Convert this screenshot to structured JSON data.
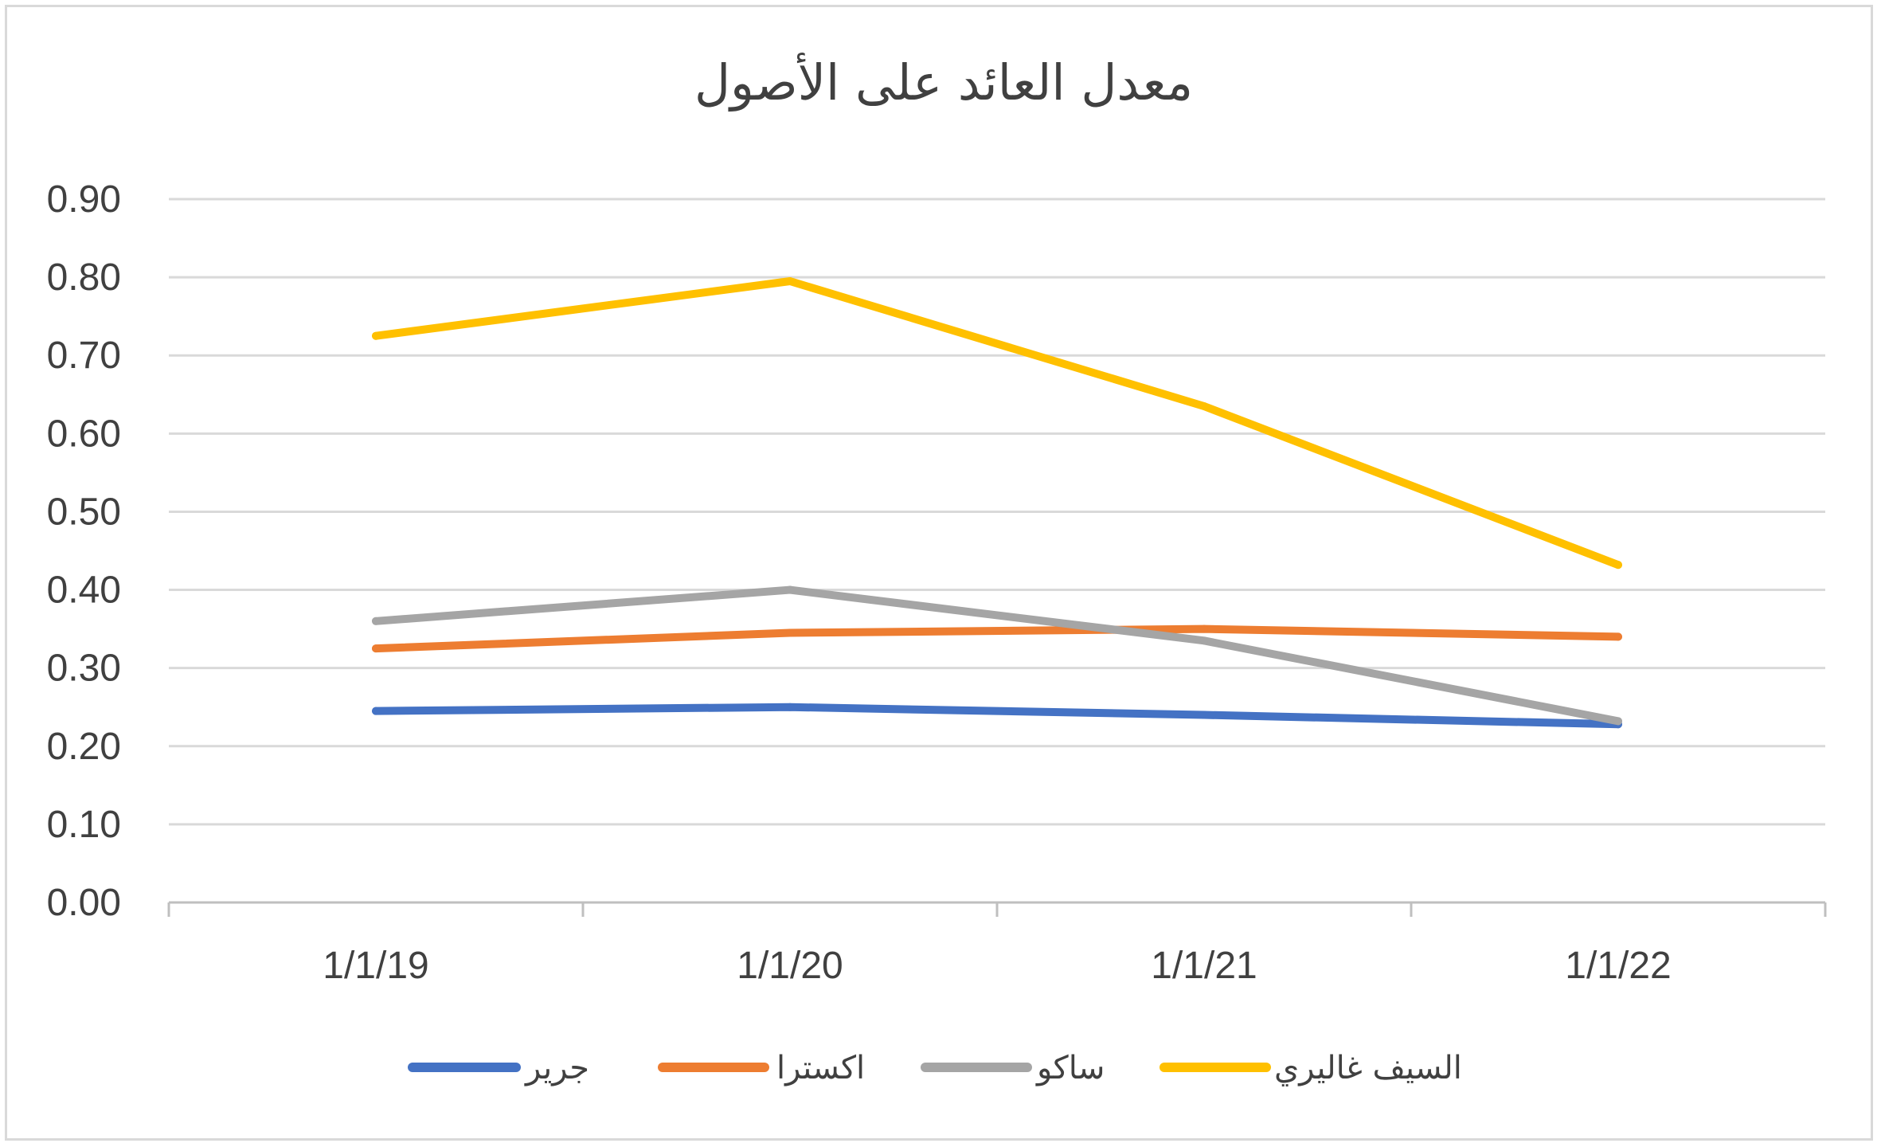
{
  "chart_data": {
    "type": "line",
    "title": "معدل العائد على الأصول",
    "xlabel": "",
    "ylabel": "",
    "categories": [
      "1/1/19",
      "1/1/20",
      "1/1/21",
      "1/1/22"
    ],
    "y_ticks": [
      "0.00",
      "0.10",
      "0.20",
      "0.30",
      "0.40",
      "0.50",
      "0.60",
      "0.70",
      "0.80",
      "0.90"
    ],
    "ylim": [
      0,
      0.9
    ],
    "grid": "horizontal",
    "legend_position": "bottom",
    "series": [
      {
        "name": "جرير",
        "color": "#4472c4",
        "values": [
          0.245,
          0.25,
          0.24,
          0.228
        ]
      },
      {
        "name": "اكسترا",
        "color": "#ed7d31",
        "values": [
          0.325,
          0.345,
          0.35,
          0.34
        ]
      },
      {
        "name": "ساكو",
        "color": "#a5a5a5",
        "values": [
          0.36,
          0.4,
          0.335,
          0.232
        ]
      },
      {
        "name": "السيف غاليري",
        "color": "#ffc000",
        "values": [
          0.725,
          0.795,
          0.635,
          0.432
        ]
      }
    ]
  }
}
